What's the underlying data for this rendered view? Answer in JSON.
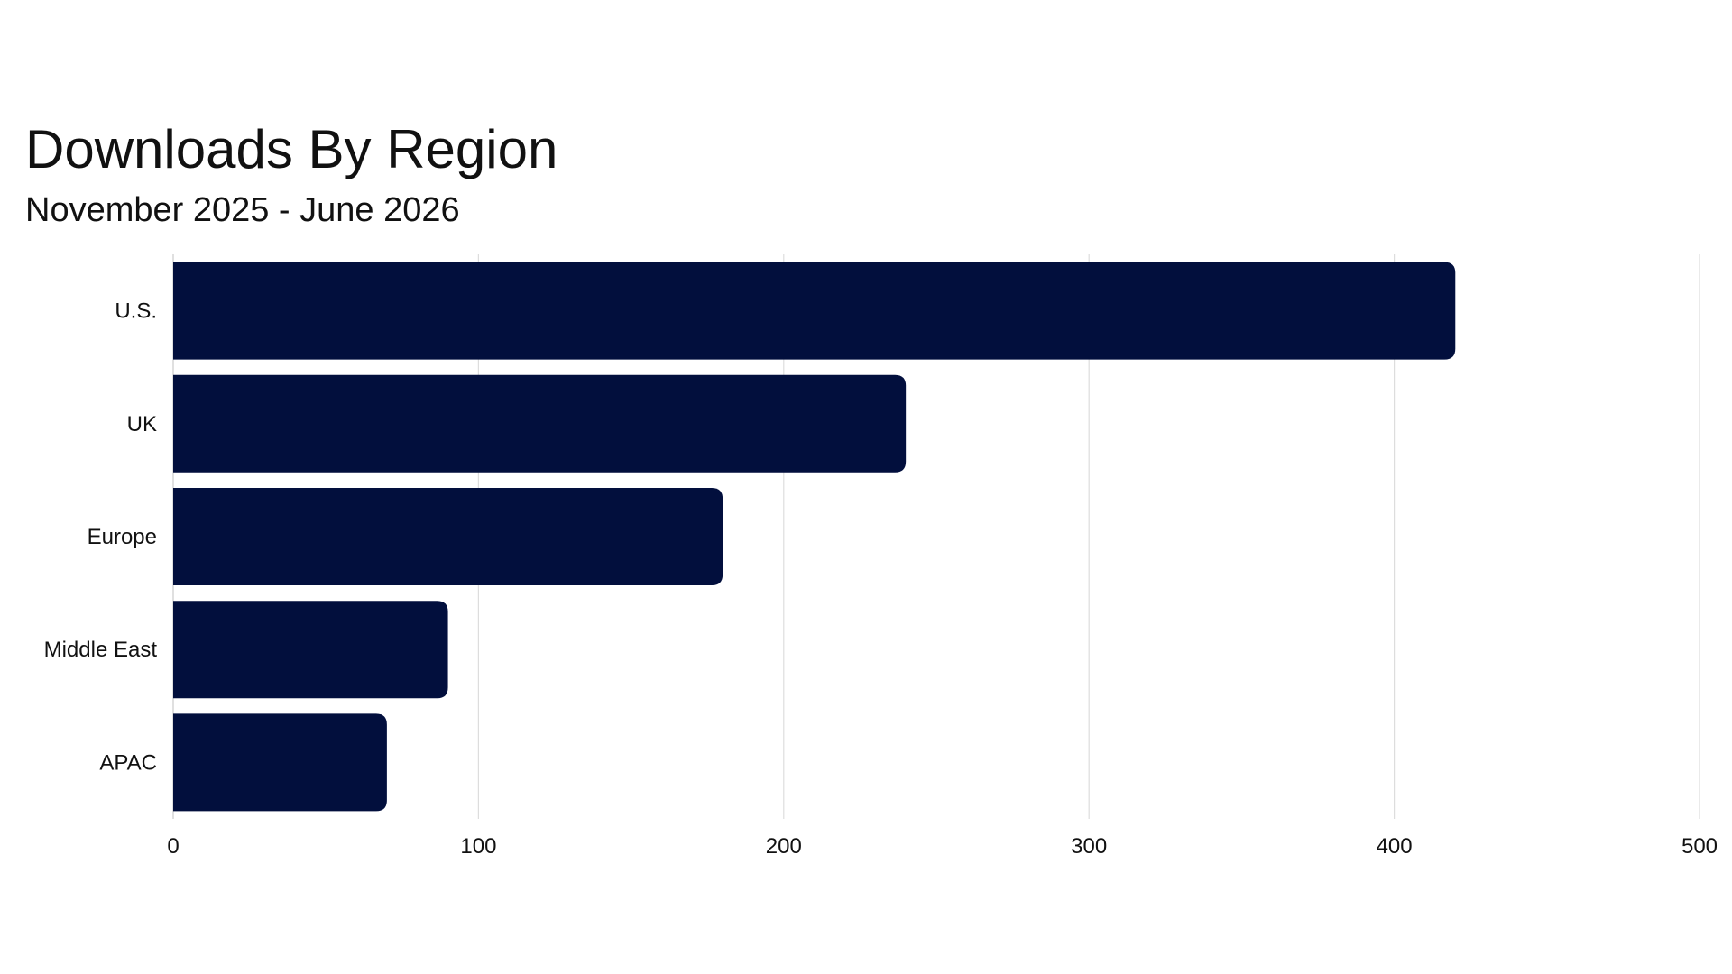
{
  "chart_data": {
    "type": "bar",
    "orientation": "horizontal",
    "title": "Downloads By Region",
    "subtitle": "November 2025 - June 2026",
    "categories": [
      "U.S.",
      "UK",
      "Europe",
      "Middle East",
      "APAC"
    ],
    "values": [
      420,
      240,
      180,
      90,
      70
    ],
    "xlim": [
      0,
      500
    ],
    "xticks": [
      "0",
      "100",
      "200",
      "300",
      "400",
      "500"
    ],
    "xlabel": "",
    "ylabel": "",
    "grid": "vertical",
    "legend": "none",
    "colors": {
      "bar": "#020f3d",
      "grid": "#dddddd",
      "axis": "#cccccc",
      "text": "#111111"
    }
  }
}
